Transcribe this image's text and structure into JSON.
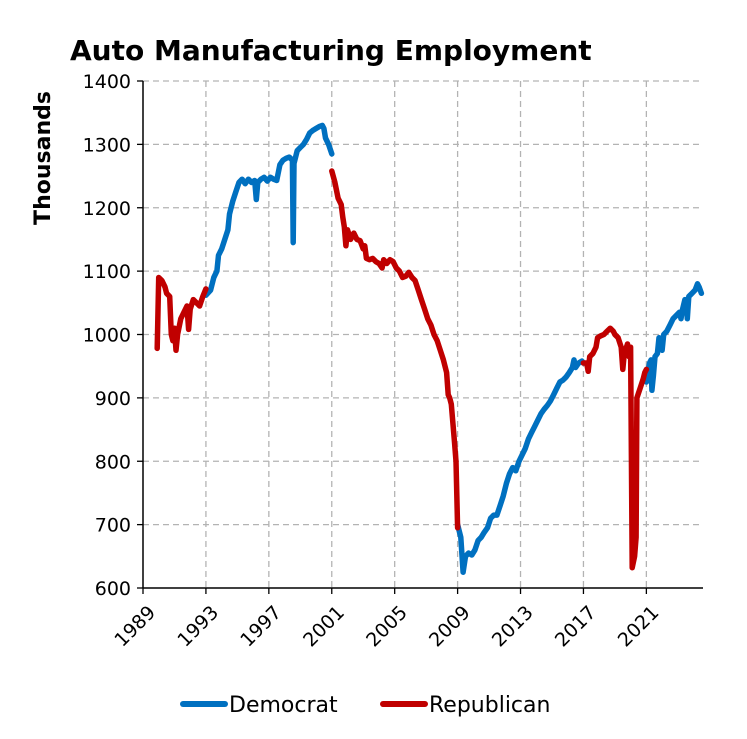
{
  "chart_data": {
    "type": "line",
    "title": "Auto Manufacturing Employment",
    "ylabel": "Thousands",
    "xlabel": "",
    "xlim": [
      1989,
      2024.6
    ],
    "ylim": [
      600,
      1400
    ],
    "x_ticks": [
      1989,
      1993,
      1997,
      2001,
      2005,
      2009,
      2013,
      2017,
      2021
    ],
    "y_ticks": [
      600,
      700,
      800,
      900,
      1000,
      1100,
      1200,
      1300,
      1400
    ],
    "grid": true,
    "legend": "bottom",
    "series": [
      {
        "name": "Democrat",
        "color": "#0070C0",
        "segments": [
          [
            [
              1993.0,
              1062
            ],
            [
              1993.3,
              1070
            ],
            [
              1993.5,
              1090
            ],
            [
              1993.7,
              1100
            ],
            [
              1993.8,
              1125
            ],
            [
              1994.0,
              1135
            ],
            [
              1994.2,
              1150
            ],
            [
              1994.4,
              1165
            ],
            [
              1994.5,
              1190
            ],
            [
              1994.7,
              1210
            ],
            [
              1994.9,
              1225
            ],
            [
              1995.1,
              1240
            ],
            [
              1995.3,
              1245
            ],
            [
              1995.5,
              1238
            ],
            [
              1995.7,
              1245
            ],
            [
              1995.9,
              1240
            ],
            [
              1996.1,
              1243
            ],
            [
              1996.2,
              1213
            ],
            [
              1996.3,
              1240
            ],
            [
              1996.5,
              1245
            ],
            [
              1996.7,
              1248
            ],
            [
              1996.9,
              1242
            ],
            [
              1997.1,
              1248
            ],
            [
              1997.3,
              1245
            ],
            [
              1997.5,
              1243
            ],
            [
              1997.7,
              1268
            ],
            [
              1997.9,
              1275
            ],
            [
              1998.1,
              1278
            ],
            [
              1998.3,
              1280
            ],
            [
              1998.5,
              1275
            ],
            [
              1998.55,
              1145
            ],
            [
              1998.6,
              1270
            ],
            [
              1998.8,
              1290
            ],
            [
              1999.0,
              1295
            ],
            [
              1999.2,
              1300
            ],
            [
              1999.4,
              1308
            ],
            [
              1999.6,
              1318
            ],
            [
              1999.8,
              1322
            ],
            [
              2000.0,
              1325
            ],
            [
              2000.2,
              1328
            ],
            [
              2000.4,
              1330
            ],
            [
              2000.5,
              1325
            ],
            [
              2000.6,
              1310
            ],
            [
              2000.8,
              1300
            ],
            [
              2001.0,
              1285
            ]
          ],
          [
            [
              2009.0,
              700
            ],
            [
              2009.2,
              680
            ],
            [
              2009.35,
              625
            ],
            [
              2009.5,
              650
            ],
            [
              2009.7,
              655
            ],
            [
              2009.9,
              652
            ],
            [
              2010.1,
              660
            ],
            [
              2010.3,
              675
            ],
            [
              2010.5,
              680
            ],
            [
              2010.7,
              688
            ],
            [
              2010.9,
              695
            ],
            [
              2011.1,
              710
            ],
            [
              2011.3,
              715
            ],
            [
              2011.5,
              715
            ],
            [
              2011.7,
              730
            ],
            [
              2011.9,
              745
            ],
            [
              2012.1,
              765
            ],
            [
              2012.3,
              780
            ],
            [
              2012.5,
              790
            ],
            [
              2012.7,
              785
            ],
            [
              2012.9,
              800
            ],
            [
              2013.1,
              810
            ],
            [
              2013.3,
              820
            ],
            [
              2013.5,
              835
            ],
            [
              2013.7,
              845
            ],
            [
              2013.9,
              855
            ],
            [
              2014.1,
              865
            ],
            [
              2014.3,
              875
            ],
            [
              2014.5,
              882
            ],
            [
              2014.7,
              888
            ],
            [
              2014.9,
              895
            ],
            [
              2015.1,
              905
            ],
            [
              2015.3,
              915
            ],
            [
              2015.5,
              925
            ],
            [
              2015.7,
              928
            ],
            [
              2015.9,
              933
            ],
            [
              2016.1,
              940
            ],
            [
              2016.3,
              948
            ],
            [
              2016.4,
              960
            ],
            [
              2016.5,
              948
            ],
            [
              2016.7,
              955
            ],
            [
              2016.9,
              958
            ],
            [
              2017.0,
              955
            ]
          ],
          [
            [
              2021.0,
              925
            ],
            [
              2021.1,
              940
            ],
            [
              2021.2,
              955
            ],
            [
              2021.3,
              960
            ],
            [
              2021.35,
              912
            ],
            [
              2021.45,
              935
            ],
            [
              2021.55,
              965
            ],
            [
              2021.7,
              970
            ],
            [
              2021.8,
              995
            ],
            [
              2021.9,
              980
            ],
            [
              2022.0,
              975
            ],
            [
              2022.1,
              1000
            ],
            [
              2022.3,
              1005
            ],
            [
              2022.5,
              1015
            ],
            [
              2022.7,
              1025
            ],
            [
              2022.9,
              1030
            ],
            [
              2023.1,
              1035
            ],
            [
              2023.2,
              1025
            ],
            [
              2023.3,
              1040
            ],
            [
              2023.45,
              1055
            ],
            [
              2023.55,
              1050
            ],
            [
              2023.6,
              1025
            ],
            [
              2023.7,
              1060
            ],
            [
              2023.9,
              1065
            ],
            [
              2024.1,
              1070
            ],
            [
              2024.25,
              1080
            ],
            [
              2024.35,
              1075
            ],
            [
              2024.5,
              1065
            ]
          ]
        ]
      },
      {
        "name": "Republican",
        "color": "#C00000",
        "segments": [
          [
            [
              1989.9,
              978
            ],
            [
              1990.0,
              1090
            ],
            [
              1990.2,
              1085
            ],
            [
              1990.4,
              1075
            ],
            [
              1990.5,
              1065
            ],
            [
              1990.7,
              1060
            ],
            [
              1990.8,
              1000
            ],
            [
              1990.9,
              990
            ],
            [
              1991.0,
              1010
            ],
            [
              1991.1,
              975
            ],
            [
              1991.2,
              1000
            ],
            [
              1991.4,
              1025
            ],
            [
              1991.6,
              1035
            ],
            [
              1991.8,
              1045
            ],
            [
              1991.9,
              1008
            ],
            [
              1992.0,
              1040
            ],
            [
              1992.2,
              1055
            ],
            [
              1992.4,
              1050
            ],
            [
              1992.6,
              1045
            ],
            [
              1992.8,
              1060
            ],
            [
              1993.0,
              1072
            ]
          ],
          [
            [
              2001.0,
              1258
            ],
            [
              2001.2,
              1240
            ],
            [
              2001.4,
              1215
            ],
            [
              2001.6,
              1205
            ],
            [
              2001.7,
              1185
            ],
            [
              2001.8,
              1170
            ],
            [
              2001.9,
              1140
            ],
            [
              2002.0,
              1165
            ],
            [
              2002.2,
              1150
            ],
            [
              2002.4,
              1160
            ],
            [
              2002.6,
              1150
            ],
            [
              2002.8,
              1148
            ],
            [
              2003.0,
              1135
            ],
            [
              2003.1,
              1140
            ],
            [
              2003.2,
              1120
            ],
            [
              2003.4,
              1118
            ],
            [
              2003.6,
              1120
            ],
            [
              2003.8,
              1115
            ],
            [
              2004.0,
              1112
            ],
            [
              2004.2,
              1105
            ],
            [
              2004.3,
              1118
            ],
            [
              2004.5,
              1112
            ],
            [
              2004.7,
              1118
            ],
            [
              2004.9,
              1115
            ],
            [
              2005.1,
              1105
            ],
            [
              2005.3,
              1100
            ],
            [
              2005.5,
              1090
            ],
            [
              2005.7,
              1092
            ],
            [
              2005.9,
              1098
            ],
            [
              2006.1,
              1090
            ],
            [
              2006.3,
              1085
            ],
            [
              2006.5,
              1070
            ],
            [
              2006.7,
              1055
            ],
            [
              2006.9,
              1040
            ],
            [
              2007.1,
              1025
            ],
            [
              2007.3,
              1015
            ],
            [
              2007.5,
              1000
            ],
            [
              2007.7,
              990
            ],
            [
              2007.9,
              975
            ],
            [
              2008.1,
              960
            ],
            [
              2008.3,
              940
            ],
            [
              2008.4,
              905
            ],
            [
              2008.5,
              900
            ],
            [
              2008.6,
              890
            ],
            [
              2008.7,
              860
            ],
            [
              2008.8,
              830
            ],
            [
              2008.9,
              800
            ],
            [
              2009.0,
              695
            ]
          ],
          [
            [
              2017.0,
              955
            ],
            [
              2017.2,
              955
            ],
            [
              2017.3,
              942
            ],
            [
              2017.4,
              965
            ],
            [
              2017.6,
              970
            ],
            [
              2017.8,
              980
            ],
            [
              2017.9,
              995
            ],
            [
              2018.1,
              998
            ],
            [
              2018.3,
              1000
            ],
            [
              2018.5,
              1005
            ],
            [
              2018.7,
              1010
            ],
            [
              2018.9,
              1005
            ],
            [
              2019.0,
              1000
            ],
            [
              2019.2,
              995
            ],
            [
              2019.4,
              980
            ],
            [
              2019.5,
              945
            ],
            [
              2019.6,
              970
            ],
            [
              2019.8,
              985
            ],
            [
              2019.9,
              965
            ],
            [
              2020.0,
              980
            ],
            [
              2020.1,
              632
            ],
            [
              2020.25,
              650
            ],
            [
              2020.35,
              680
            ],
            [
              2020.4,
              900
            ],
            [
              2020.6,
              915
            ],
            [
              2020.8,
              930
            ],
            [
              2020.9,
              940
            ],
            [
              2021.0,
              945
            ]
          ]
        ]
      }
    ]
  }
}
